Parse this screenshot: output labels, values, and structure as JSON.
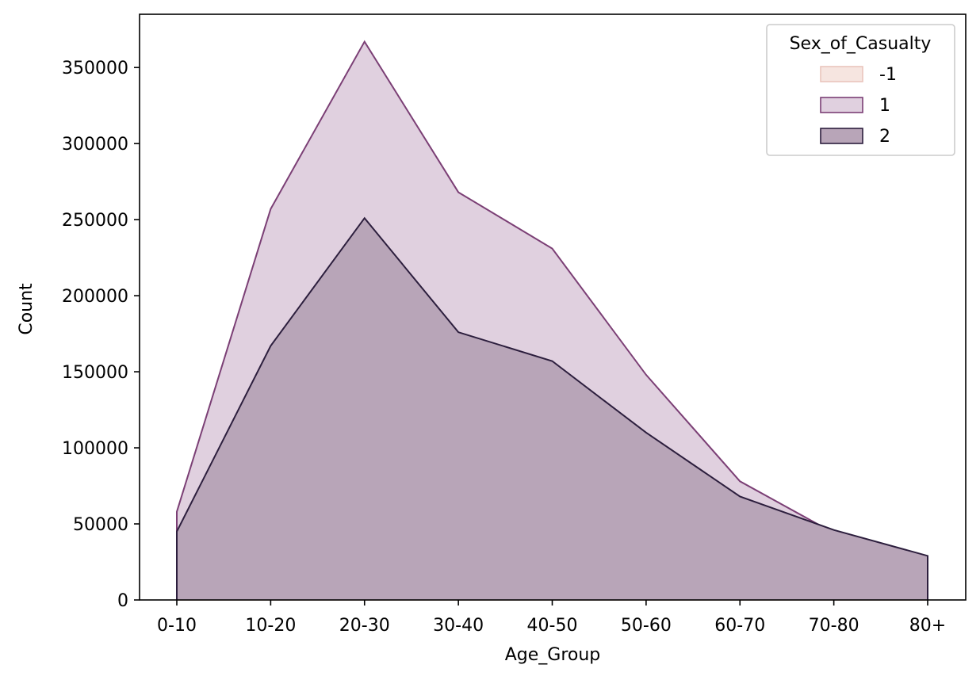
{
  "chart_data": {
    "type": "area",
    "xlabel": "Age_Group",
    "ylabel": "Count",
    "categories": [
      "0-10",
      "10-20",
      "20-30",
      "30-40",
      "40-50",
      "50-60",
      "60-70",
      "70-80",
      "80+"
    ],
    "ylim": [
      0,
      385000
    ],
    "yticks": [
      0,
      50000,
      100000,
      150000,
      200000,
      250000,
      300000,
      350000
    ],
    "grid": false,
    "legend": {
      "title": "Sex_of_Casualty",
      "placement": "top-right"
    },
    "series": [
      {
        "name": "-1",
        "values": [
          0,
          0,
          0,
          0,
          0,
          0,
          0,
          0,
          0
        ],
        "fill": "#f6e5e0",
        "stroke": "#eac5bc"
      },
      {
        "name": "1",
        "values": [
          58000,
          257000,
          367000,
          268000,
          231000,
          148000,
          78000,
          44000,
          26000
        ],
        "fill": "#e0d0df",
        "stroke": "#7b3f75"
      },
      {
        "name": "2",
        "values": [
          45000,
          167000,
          251000,
          176000,
          157000,
          110000,
          68000,
          46000,
          29000
        ],
        "fill": "#b8a5b8",
        "stroke": "#2c1e3d"
      }
    ]
  }
}
